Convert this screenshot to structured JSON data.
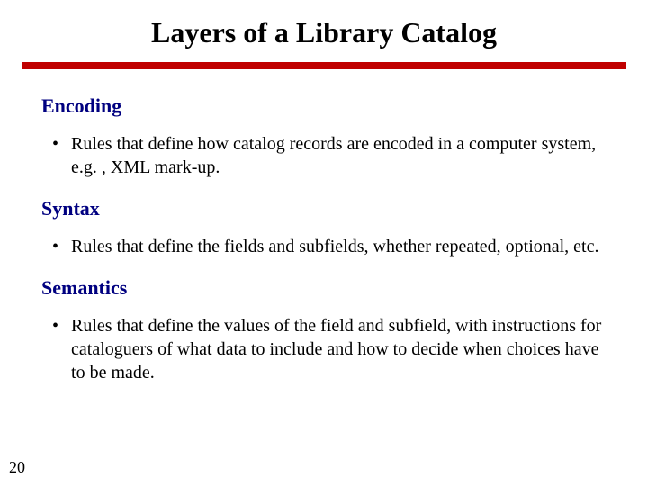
{
  "slide": {
    "title": "Layers of a Library Catalog",
    "page_number": "20",
    "rule_color": "#c00000",
    "heading_color": "#000080",
    "background_color": "#ffffff",
    "title_fontsize": 32,
    "heading_fontsize": 22,
    "body_fontsize": 20,
    "sections": [
      {
        "heading": "Encoding",
        "bullet": "Rules that define how catalog records are encoded in a computer system, e.g. , XML mark-up."
      },
      {
        "heading": "Syntax",
        "bullet": "Rules that define the fields and subfields, whether repeated, optional, etc."
      },
      {
        "heading": "Semantics",
        "bullet": "Rules that define the values of the field and subfield, with instructions for cataloguers of what data to include and how to decide when choices have to be made."
      }
    ]
  }
}
